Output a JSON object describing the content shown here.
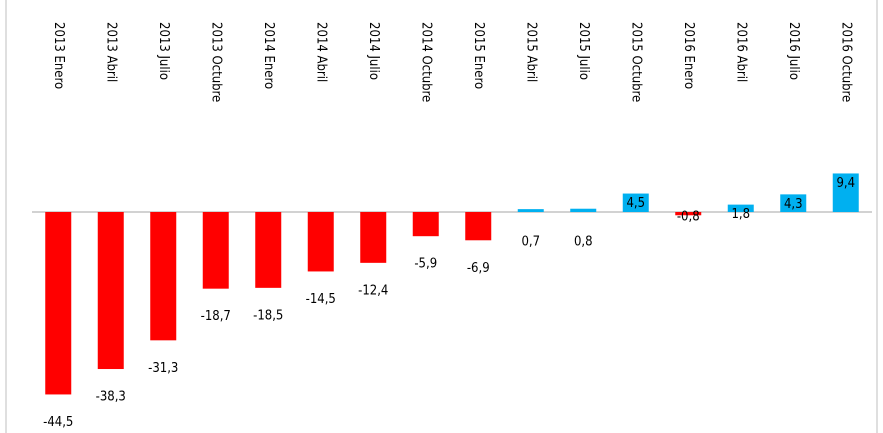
{
  "chart_data": {
    "type": "bar",
    "categories": [
      "2013 Enero",
      "2013 Abril",
      "2013 Julio",
      "2013 Octubre",
      "2014 Enero",
      "2014 Abril",
      "2014 Julio",
      "2014 Octubre",
      "2015 Enero",
      "2015 Abril",
      "2015 Julio",
      "2015 Octubre",
      "2016 Enero",
      "2016 Abril",
      "2016 Julio",
      "2016 Octubre"
    ],
    "values": [
      -44.5,
      -38.3,
      -31.3,
      -18.7,
      -18.5,
      -14.5,
      -12.4,
      -5.9,
      -6.9,
      0.7,
      0.8,
      4.5,
      -0.8,
      1.8,
      4.3,
      9.4
    ],
    "value_labels": [
      "-44,5",
      "-38,3",
      "-31,3",
      "-18,7",
      "-18,5",
      "-14,5",
      "-12,4",
      "-5,9",
      "-6,9",
      "0,7",
      "0,8",
      "4,5",
      "-0,8",
      "1,8",
      "4,3",
      "9,4"
    ],
    "color": "#00b0f0",
    "negative_color": "#ff0000",
    "ylim": [
      -50,
      10
    ]
  }
}
